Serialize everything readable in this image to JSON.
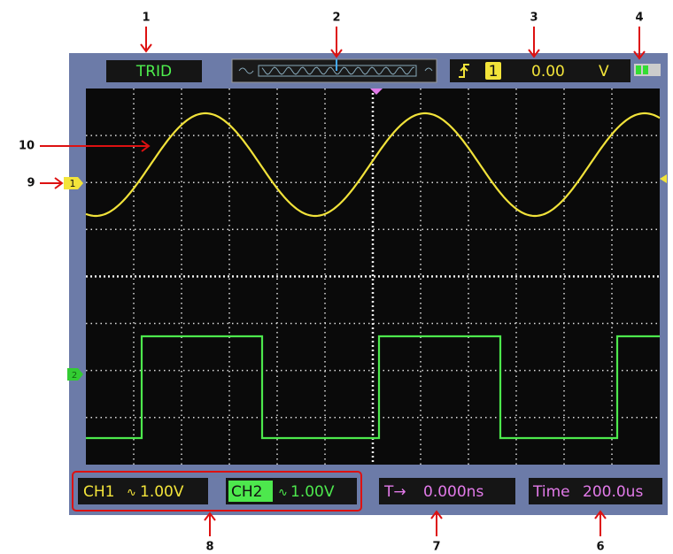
{
  "callouts": [
    "1",
    "2",
    "3",
    "4",
    "6",
    "7",
    "8",
    "9",
    "10"
  ],
  "top_bar": {
    "trigger_status": "TRID",
    "trigger_channel": "1",
    "trigger_level": "0.00",
    "trigger_unit": "V"
  },
  "channel_markers": [
    "1",
    "2"
  ],
  "bottom_bar": {
    "ch1_label": "CH1",
    "ch1_scale": "1.00V",
    "ch2_label": "CH2",
    "ch2_scale": "1.00V",
    "offset_label": "T→",
    "offset_value": "0.000ns",
    "time_label": "Time",
    "time_value": "200.0us"
  }
}
